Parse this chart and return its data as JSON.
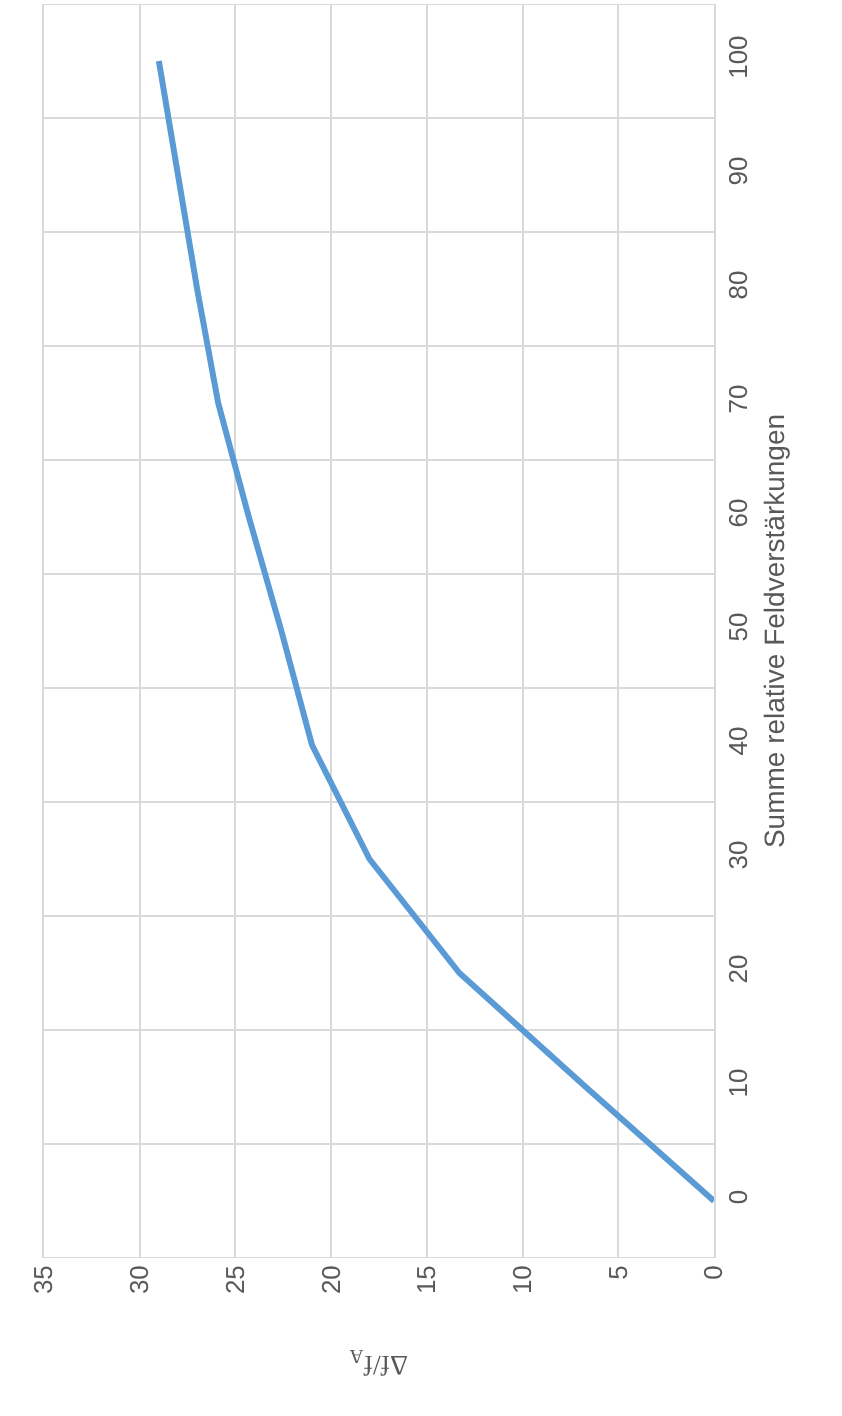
{
  "chart_data": {
    "type": "line",
    "xlabel": "Δf/f$_{A}$",
    "ylabel": "Summe relative Feldverstärkungen",
    "x": [
      0,
      6.7,
      13.3,
      18.0,
      21.0,
      22.6,
      24.3,
      25.9,
      27.0,
      28.0,
      29.0
    ],
    "series": [
      {
        "color": "#5b9bd5",
        "values": [
          0,
          10,
          20,
          30,
          40,
          50,
          60,
          70,
          80,
          90,
          100
        ]
      }
    ],
    "xlim": [
      35,
      0
    ],
    "xticks": [
      35,
      30,
      25,
      20,
      15,
      10,
      5,
      0
    ],
    "ylim": [
      -5,
      105
    ],
    "yticks": [
      {
        "value": -5,
        "label": null
      },
      0,
      {
        "value": 5,
        "label": null
      },
      10,
      {
        "value": 15,
        "label": null
      },
      20,
      {
        "value": 25,
        "label": null
      },
      30,
      {
        "value": 35,
        "label": null
      },
      40,
      {
        "value": 45,
        "label": null
      },
      50,
      {
        "value": 55,
        "label": null
      },
      60,
      {
        "value": 65,
        "label": null
      },
      70,
      {
        "value": 75,
        "label": null
      },
      80,
      {
        "value": 85,
        "label": null
      },
      90,
      {
        "value": 95,
        "label": null
      },
      100,
      {
        "value": 105,
        "label": null
      }
    ],
    "grid": true,
    "legend": false,
    "marker": "none",
    "line_style": "solid"
  }
}
